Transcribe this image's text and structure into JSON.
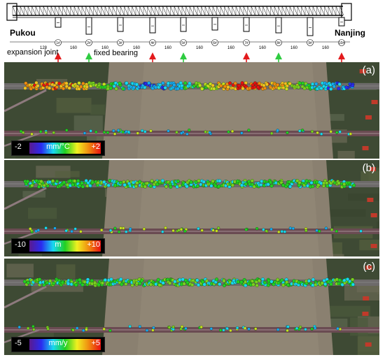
{
  "bridge": {
    "left_city": "Pukou",
    "right_city": "Nanjing",
    "span_lengths": [
      "128",
      "160",
      "160",
      "160",
      "160",
      "160",
      "160",
      "160",
      "160",
      "160"
    ],
    "pier_ids": [
      "1#",
      "2#",
      "3#",
      "4#",
      "5#",
      "6#",
      "7#",
      "8#",
      "9#",
      "10#"
    ],
    "bearing_types": [
      "expansion",
      "fixed",
      "none",
      "expansion",
      "fixed",
      "none",
      "expansion",
      "fixed",
      "none",
      "expansion"
    ]
  },
  "legend": {
    "expansion_label": "expansion joint",
    "fixed_label": "fixed bearing",
    "expansion_color": "#e31a1c",
    "fixed_color": "#2ecc40"
  },
  "panels": [
    {
      "label": "(a)",
      "min": "-2",
      "unit": "mm/°C",
      "max": "+2"
    },
    {
      "label": "(b)",
      "min": "-10",
      "unit": "m",
      "max": "+10"
    },
    {
      "label": "(c)",
      "min": "-5",
      "unit": "mm/y",
      "max": "+5"
    }
  ]
}
